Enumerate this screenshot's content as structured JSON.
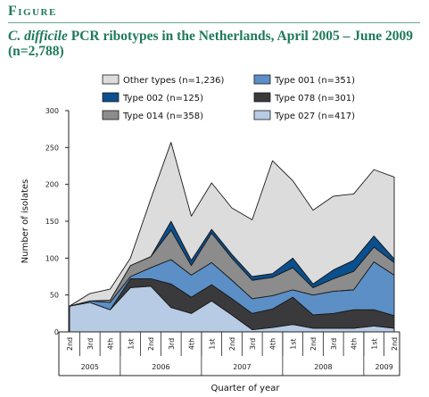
{
  "figure": {
    "label": "Figure",
    "title_italic": "C. difficile",
    "title_rest": " PCR ribotypes in the Netherlands, April 2005 – June 2009 (n=2,788)"
  },
  "colors": {
    "header": "#1f7a5a",
    "type_027": "#b8cbe4",
    "type_078": "#3a3a3c",
    "type_001": "#5b8fc6",
    "type_014": "#8c8c8c",
    "type_002": "#0a4f8e",
    "other": "#dcdcdc"
  },
  "chart_data": {
    "type": "area",
    "stacked": true,
    "xlabel": "Quarter of year",
    "ylabel": "Number of isolates",
    "ylim": [
      0,
      300
    ],
    "yticks": [
      0,
      50,
      100,
      150,
      200,
      250,
      300
    ],
    "quarters": [
      "2nd",
      "3rd",
      "4th",
      "1st",
      "2nd",
      "3rd",
      "4th",
      "1st",
      "2nd",
      "3rd",
      "4th",
      "1st",
      "2nd",
      "3rd",
      "4th",
      "1st",
      "2nd"
    ],
    "years": [
      {
        "label": "2005",
        "quarter_count": 3
      },
      {
        "label": "2006",
        "quarter_count": 4
      },
      {
        "label": "2007",
        "quarter_count": 4
      },
      {
        "label": "2008",
        "quarter_count": 4
      },
      {
        "label": "2009",
        "quarter_count": 2
      }
    ],
    "legend_position": "top",
    "series": [
      {
        "name": "Type 027 (n=417)",
        "color_key": "type_027",
        "values": [
          35,
          40,
          30,
          60,
          62,
          33,
          25,
          42,
          23,
          3,
          6,
          10,
          5,
          5,
          5,
          8,
          5
        ]
      },
      {
        "name": "Type 078 (n=301)",
        "color_key": "type_078",
        "values": [
          0,
          0,
          0,
          12,
          10,
          32,
          22,
          22,
          22,
          22,
          25,
          37,
          18,
          20,
          25,
          22,
          17
        ]
      },
      {
        "name": "Type 001 (n=351)",
        "color_key": "type_001",
        "values": [
          0,
          2,
          10,
          3,
          15,
          33,
          30,
          30,
          25,
          20,
          18,
          10,
          27,
          30,
          27,
          65,
          55
        ]
      },
      {
        "name": "Type 014 (n=358)",
        "color_key": "type_014",
        "values": [
          0,
          0,
          3,
          15,
          15,
          40,
          13,
          40,
          30,
          25,
          25,
          30,
          10,
          17,
          25,
          20,
          17
        ]
      },
      {
        "name": "Type 002 (n=125)",
        "color_key": "type_002",
        "values": [
          0,
          0,
          0,
          0,
          0,
          12,
          7,
          5,
          5,
          5,
          5,
          13,
          5,
          12,
          15,
          15,
          5
        ]
      },
      {
        "name": "Other types (n=1,236)",
        "color_key": "other",
        "values": [
          0,
          10,
          15,
          10,
          78,
          107,
          60,
          63,
          63,
          77,
          153,
          105,
          100,
          100,
          90,
          90,
          111
        ]
      }
    ],
    "legend_order": [
      "Other types (n=1,236)",
      "Type 001 (n=351)",
      "Type 002 (n=125)",
      "Type 078 (n=301)",
      "Type 014 (n=358)",
      "Type 027 (n=417)"
    ]
  }
}
